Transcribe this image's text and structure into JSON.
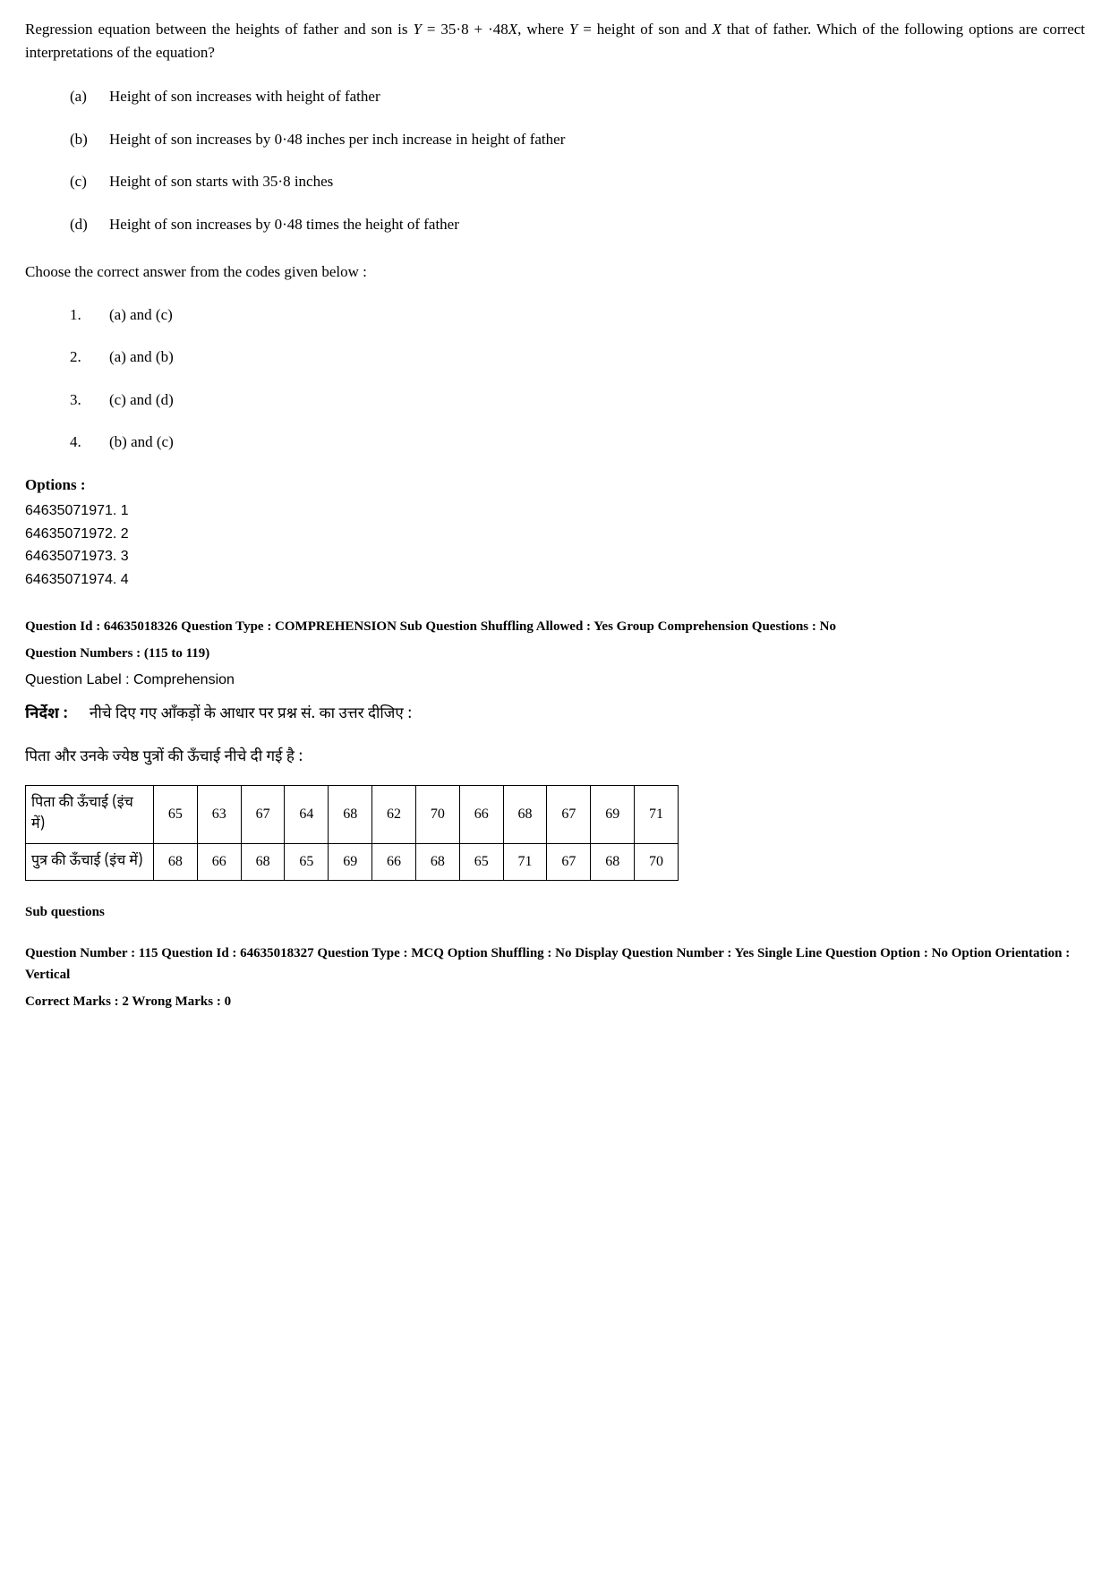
{
  "question": {
    "stem_pre": "Regression equation between the heights of father and son is ",
    "stem_eq_y": "Y",
    "stem_eq_mid": " = 35·8 + ·48",
    "stem_eq_x": "X",
    "stem_post1": ", where ",
    "stem_y2": "Y",
    "stem_post2": " = height of son and ",
    "stem_x2": "X",
    "stem_post3": " that of father. Which of the following options are correct interpretations of the equation?",
    "statements": [
      {
        "label": "(a)",
        "text": "Height of son increases with height of father"
      },
      {
        "label": "(b)",
        "text": "Height of son increases by 0·48 inches per inch increase in height of father"
      },
      {
        "label": "(c)",
        "text": "Height of son starts with 35·8 inches"
      },
      {
        "label": "(d)",
        "text": "Height of son increases by 0·48 times the height of father"
      }
    ],
    "choose_line": "Choose the correct answer from the codes given below :",
    "codes": [
      {
        "num": "1.",
        "text": "(a) and (c)"
      },
      {
        "num": "2.",
        "text": "(a) and (b)"
      },
      {
        "num": "3.",
        "text": "(c) and (d)"
      },
      {
        "num": "4.",
        "text": "(b) and (c)"
      }
    ]
  },
  "options": {
    "heading": "Options :",
    "items": [
      "64635071971. 1",
      "64635071972. 2",
      "64635071973. 3",
      "64635071974. 4"
    ]
  },
  "comprehension": {
    "meta_line1": "Question Id : 64635018326  Question Type : COMPREHENSION  Sub Question Shuffling Allowed : Yes  Group Comprehension Questions : No",
    "meta_line2": "Question Numbers : (115 to 119)",
    "label": "Question Label : Comprehension",
    "nirdesh_label": "निर्देश :",
    "nirdesh_text": "नीचे दिए गए आँकड़ों के आधार पर प्रश्न सं.  का उत्तर दीजिए :",
    "intro_line": "पिता और उनके ज्येष्ठ पुत्रों की ऊँचाई नीचे दी गई है :"
  },
  "table": {
    "row1_header": "पिता की ऊँचाई (इंच में)",
    "row1": [
      "65",
      "63",
      "67",
      "64",
      "68",
      "62",
      "70",
      "66",
      "68",
      "67",
      "69",
      "71"
    ],
    "row2_header": "पुत्र की ऊँचाई (इंच में)",
    "row2": [
      "68",
      "66",
      "68",
      "65",
      "69",
      "66",
      "68",
      "65",
      "71",
      "67",
      "68",
      "70"
    ]
  },
  "subq": {
    "heading": "Sub questions",
    "meta_line1": "Question Number : 115  Question Id : 64635018327  Question Type : MCQ  Option Shuffling : No  Display Question Number : Yes Single Line Question Option : No  Option Orientation : Vertical",
    "meta_line2": "Correct Marks : 2  Wrong Marks : 0"
  }
}
